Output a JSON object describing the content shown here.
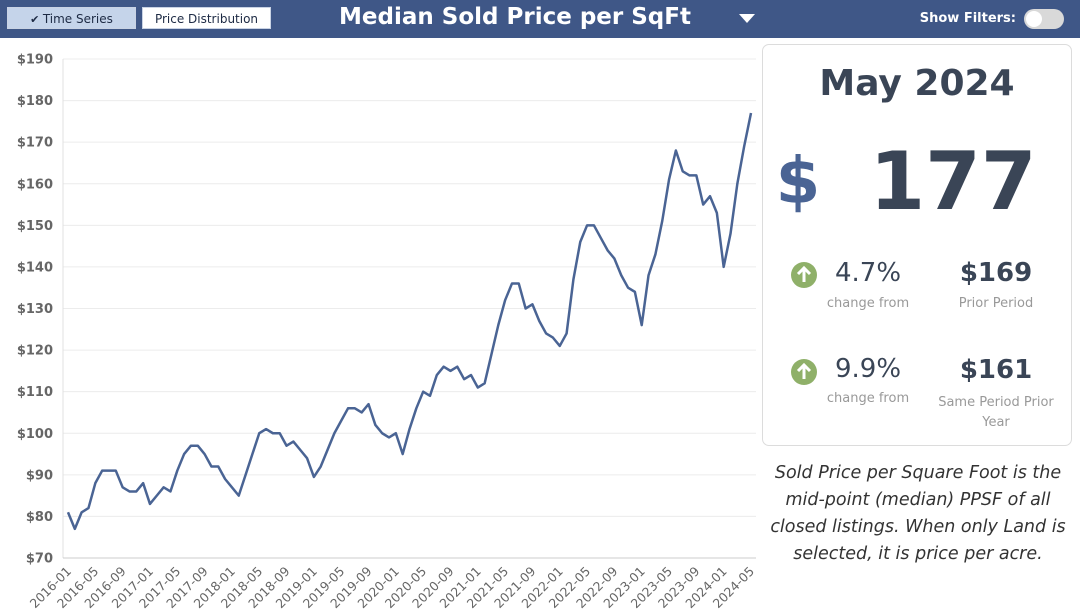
{
  "header": {
    "tabs": [
      "Time Series",
      "Price Distribution"
    ],
    "title": "Median Sold Price per SqFt",
    "filters_label": "Show Filters:"
  },
  "chart_data": {
    "type": "line",
    "color": "#4a6494",
    "grid": true,
    "categories": [
      "2016-01",
      null,
      null,
      null,
      "2016-05",
      null,
      null,
      null,
      "2016-09",
      null,
      null,
      null,
      "2017-01",
      null,
      null,
      null,
      "2017-05",
      null,
      null,
      null,
      "2017-09",
      null,
      null,
      null,
      "2018-01",
      null,
      null,
      null,
      "2018-05",
      null,
      null,
      null,
      "2018-09",
      null,
      null,
      null,
      "2019-01",
      null,
      null,
      null,
      "2019-05",
      null,
      null,
      null,
      "2019-09",
      null,
      null,
      null,
      "2020-01",
      null,
      null,
      null,
      "2020-05",
      null,
      null,
      null,
      "2020-09",
      null,
      null,
      null,
      "2021-01",
      null,
      null,
      null,
      "2021-05",
      null,
      null,
      null,
      "2021-09",
      null,
      null,
      null,
      "2022-01",
      null,
      null,
      null,
      "2022-05",
      null,
      null,
      null,
      "2022-09",
      null,
      null,
      null,
      "2023-01",
      null,
      null,
      null,
      "2023-05",
      null,
      null,
      null,
      "2023-09",
      null,
      null,
      null,
      "2024-01",
      null,
      null,
      null,
      "2024-05"
    ],
    "values": [
      81,
      77,
      81,
      82,
      88,
      91,
      91,
      91,
      87,
      86,
      86,
      88,
      83,
      85,
      87,
      86,
      91,
      95,
      97,
      97,
      95,
      92,
      92,
      89,
      87,
      85,
      90,
      95,
      100,
      101,
      100,
      100,
      97,
      98,
      96,
      94,
      89.5,
      92,
      96,
      100,
      103,
      106,
      106,
      105,
      107,
      102,
      100,
      99,
      100,
      95,
      101,
      106,
      110,
      109,
      114,
      116,
      115,
      116,
      113,
      114,
      111,
      112,
      119,
      126,
      132,
      136,
      136,
      130,
      131,
      127,
      124,
      123,
      121,
      124,
      137,
      146,
      150,
      150,
      147,
      144,
      142,
      138,
      135,
      134,
      126,
      138,
      143,
      151,
      161,
      168,
      163,
      162,
      162,
      155,
      157,
      153,
      140,
      148,
      160,
      169,
      177
    ],
    "ylim": [
      70,
      190
    ],
    "yticks": [
      {
        "value": 70,
        "label": "$70"
      },
      {
        "value": 80,
        "label": "$80"
      },
      {
        "value": 90,
        "label": "$90"
      },
      {
        "value": 100,
        "label": "$100"
      },
      {
        "value": 110,
        "label": "$110"
      },
      {
        "value": 120,
        "label": "$120"
      },
      {
        "value": 130,
        "label": "$130"
      },
      {
        "value": 140,
        "label": "$140"
      },
      {
        "value": 150,
        "label": "$150"
      },
      {
        "value": 160,
        "label": "$160"
      },
      {
        "value": 170,
        "label": "$170"
      },
      {
        "value": 180,
        "label": "$180"
      },
      {
        "value": 190,
        "label": "$190"
      }
    ]
  },
  "summary": {
    "period": "May 2024",
    "currency": "$",
    "value": "177",
    "rows": [
      {
        "change": "4.7%",
        "change_label": "change from",
        "amount": "$169",
        "amount_label": "Prior Period"
      },
      {
        "change": "9.9%",
        "change_label": "change from",
        "amount": "$161",
        "amount_label": "Same Period Prior Year"
      }
    ]
  },
  "note": "Sold Price per Square Foot is the mid-point (median) PPSF of all closed listings. When only Land is selected, it is price per acre."
}
